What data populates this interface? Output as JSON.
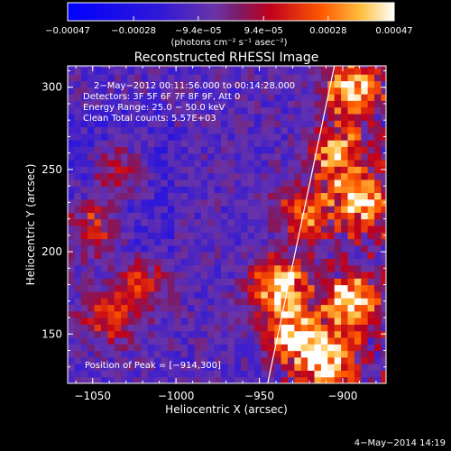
{
  "chart_data": {
    "type": "heatmap",
    "title": "Reconstructed RHESSI Image",
    "xlabel": "Heliocentric X (arcsec)",
    "ylabel": "Heliocentric Y (arcsec)",
    "xlim": [
      -1065,
      -874
    ],
    "ylim": [
      120,
      313
    ],
    "xticks": [
      -1050,
      -1000,
      -950,
      -900
    ],
    "yticks": [
      150,
      200,
      250,
      300
    ],
    "xtick_labels": [
      "−1050",
      "−1000",
      "−950",
      "−900"
    ],
    "ytick_labels": [
      "150",
      "200",
      "250",
      "300"
    ],
    "colorbar": {
      "range": [
        -0.00047,
        0.00047
      ],
      "ticks": [
        -0.00047,
        -0.00028,
        -9.4e-05,
        9.4e-05,
        0.00028,
        0.00047
      ],
      "tick_labels": [
        "−0.00047",
        "−0.00028",
        "−9.4e−05",
        "9.4e−05",
        "0.00028",
        "0.00047"
      ],
      "unit_label": "(photons cm⁻² s⁻¹ asec⁻²)"
    },
    "annotations": [
      "2−May−2012 00:11:56.000 to 00:14:28.000",
      "Detectors: 3F 5F 6F 7F 8F 9F, Att 0",
      "Energy Range: 25.0 − 50.0 keV",
      "Clean    Total counts: 5.57E+03"
    ],
    "peak_label": "Position of Peak = [−914,300]",
    "peak_position": [
      -914,
      300
    ],
    "limb_line": [
      [
        -945,
        120
      ],
      [
        -905,
        313
      ]
    ],
    "bright_sources": [
      {
        "x": -940,
        "y": 180,
        "intensity": 0.95
      },
      {
        "x": -930,
        "y": 150,
        "intensity": 0.9
      },
      {
        "x": -910,
        "y": 135,
        "intensity": 1.0
      },
      {
        "x": -895,
        "y": 170,
        "intensity": 0.85
      },
      {
        "x": -890,
        "y": 230,
        "intensity": 0.8
      },
      {
        "x": -905,
        "y": 260,
        "intensity": 0.75
      },
      {
        "x": -895,
        "y": 300,
        "intensity": 0.85
      },
      {
        "x": -925,
        "y": 225,
        "intensity": 0.6
      },
      {
        "x": -1050,
        "y": 215,
        "intensity": 0.55
      },
      {
        "x": -1040,
        "y": 160,
        "intensity": 0.5
      },
      {
        "x": -1035,
        "y": 250,
        "intensity": 0.4
      },
      {
        "x": -1020,
        "y": 180,
        "intensity": 0.45
      }
    ]
  },
  "footer": {
    "date": "4−May−2014 14:19"
  },
  "colors": {
    "background": "#000000",
    "text": "#ffffff"
  }
}
